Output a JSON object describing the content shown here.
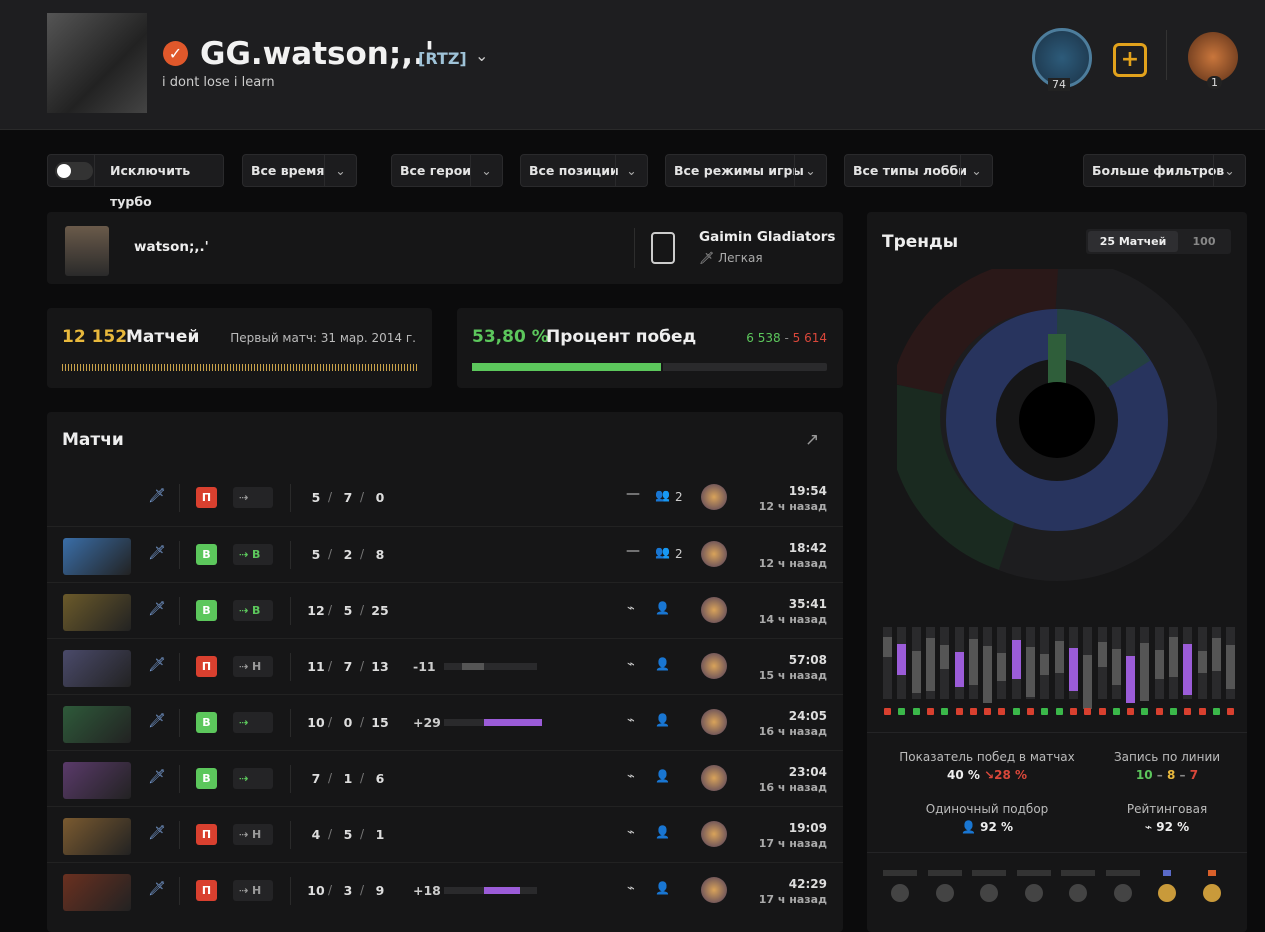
{
  "header": {
    "name": "GG.watson;,.'",
    "tag": "[RTZ]",
    "bio": "i dont lose i learn",
    "badge_level": "74",
    "badge_rank": "1"
  },
  "filters": {
    "toggle": "Исключить турбо",
    "dropdowns": [
      "Все время",
      "Все герои",
      "Все позиции",
      "Все режимы игры",
      "Все типы лобби",
      "Больше фильтров"
    ]
  },
  "pro": {
    "player": "watson;,.'",
    "team": "Gaimin Gladiators",
    "role": "Легкая"
  },
  "stats": {
    "matches_count": "12 152",
    "matches_label": "Матчей",
    "first_match": "Первый матч: 31 мар. 2014 г.",
    "winrate": "53,80 %",
    "winrate_label": "Процент побед",
    "wins": {
      "value": 6538,
      "label": "6 538"
    },
    "separator": "-",
    "losses": {
      "value": 5614,
      "label": "5 614"
    }
  },
  "matches": {
    "title": "Матчи",
    "rows": [
      {
        "result": "П",
        "lane": "",
        "kda": [
          "5",
          "7",
          "0"
        ],
        "party": "2",
        "duration": "19:54",
        "ago": "12 ч назад"
      },
      {
        "result": "В",
        "lane": "В",
        "kda": [
          "5",
          "2",
          "8"
        ],
        "party": "2",
        "duration": "18:42",
        "ago": "12 ч назад"
      },
      {
        "result": "В",
        "lane": "В",
        "kda": [
          "12",
          "5",
          "25"
        ],
        "duration": "35:41",
        "ago": "14 ч назад"
      },
      {
        "result": "П",
        "lane": "Н",
        "kda": [
          "11",
          "7",
          "13"
        ],
        "rating": {
          "value": -11,
          "label": "-11"
        },
        "duration": "57:08",
        "ago": "15 ч назад"
      },
      {
        "result": "В",
        "lane": "",
        "kda": [
          "10",
          "0",
          "15"
        ],
        "rating": {
          "value": 29,
          "label": "+29"
        },
        "duration": "24:05",
        "ago": "16 ч назад"
      },
      {
        "result": "В",
        "lane": "",
        "kda": [
          "7",
          "1",
          "6"
        ],
        "duration": "23:04",
        "ago": "16 ч назад"
      },
      {
        "result": "П",
        "lane": "Н",
        "kda": [
          "4",
          "5",
          "1"
        ],
        "duration": "19:09",
        "ago": "17 ч назад"
      },
      {
        "result": "П",
        "lane": "Н",
        "kda": [
          "10",
          "3",
          "9"
        ],
        "rating": {
          "value": 18,
          "label": "+18"
        },
        "duration": "42:29",
        "ago": "17 ч назад"
      }
    ]
  },
  "trends": {
    "title": "Тренды",
    "tabs": [
      "25 Матчей",
      "100"
    ],
    "winrate_label": "Показатель побед в матчах",
    "winrate": "40 %",
    "winrate_change": "28 %",
    "lane_label": "Запись по линии",
    "lane_wins": "10",
    "lane_draws": "8",
    "lane_losses": "7",
    "lane_sep": "–",
    "solo_label": "Одиночный подбор",
    "solo": "92 %",
    "ranked_label": "Рейтинговая",
    "ranked": "92 %"
  }
}
